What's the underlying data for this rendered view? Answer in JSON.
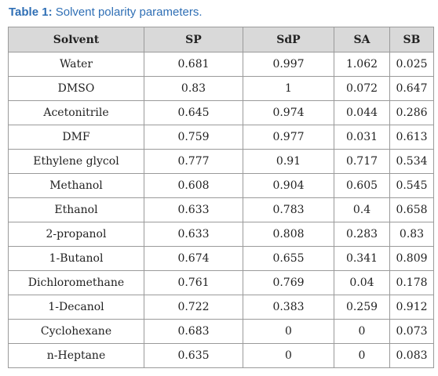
{
  "caption": {
    "label": "Table 1:",
    "text": "Solvent polarity parameters."
  },
  "table": {
    "columns": [
      "Solvent",
      "SP",
      "SdP",
      "SA",
      "SB"
    ],
    "rows": [
      [
        "Water",
        "0.681",
        "0.997",
        "1.062",
        "0.025"
      ],
      [
        "DMSO",
        "0.83",
        "1",
        "0.072",
        "0.647"
      ],
      [
        "Acetonitrile",
        "0.645",
        "0.974",
        "0.044",
        "0.286"
      ],
      [
        "DMF",
        "0.759",
        "0.977",
        "0.031",
        "0.613"
      ],
      [
        "Ethylene glycol",
        "0.777",
        "0.91",
        "0.717",
        "0.534"
      ],
      [
        "Methanol",
        "0.608",
        "0.904",
        "0.605",
        "0.545"
      ],
      [
        "Ethanol",
        "0.633",
        "0.783",
        "0.4",
        "0.658"
      ],
      [
        "2-propanol",
        "0.633",
        "0.808",
        "0.283",
        "0.83"
      ],
      [
        "1-Butanol",
        "0.674",
        "0.655",
        "0.341",
        "0.809"
      ],
      [
        "Dichloromethane",
        "0.761",
        "0.769",
        "0.04",
        "0.178"
      ],
      [
        "1-Decanol",
        "0.722",
        "0.383",
        "0.259",
        "0.912"
      ],
      [
        "Cyclohexane",
        "0.683",
        "0",
        "0",
        "0.073"
      ],
      [
        "n-Heptane",
        "0.635",
        "0",
        "0",
        "0.083"
      ]
    ]
  },
  "colors": {
    "caption": "#2f6fb5",
    "header_background": "#d9d9d9",
    "border": "#9a9a9a"
  }
}
